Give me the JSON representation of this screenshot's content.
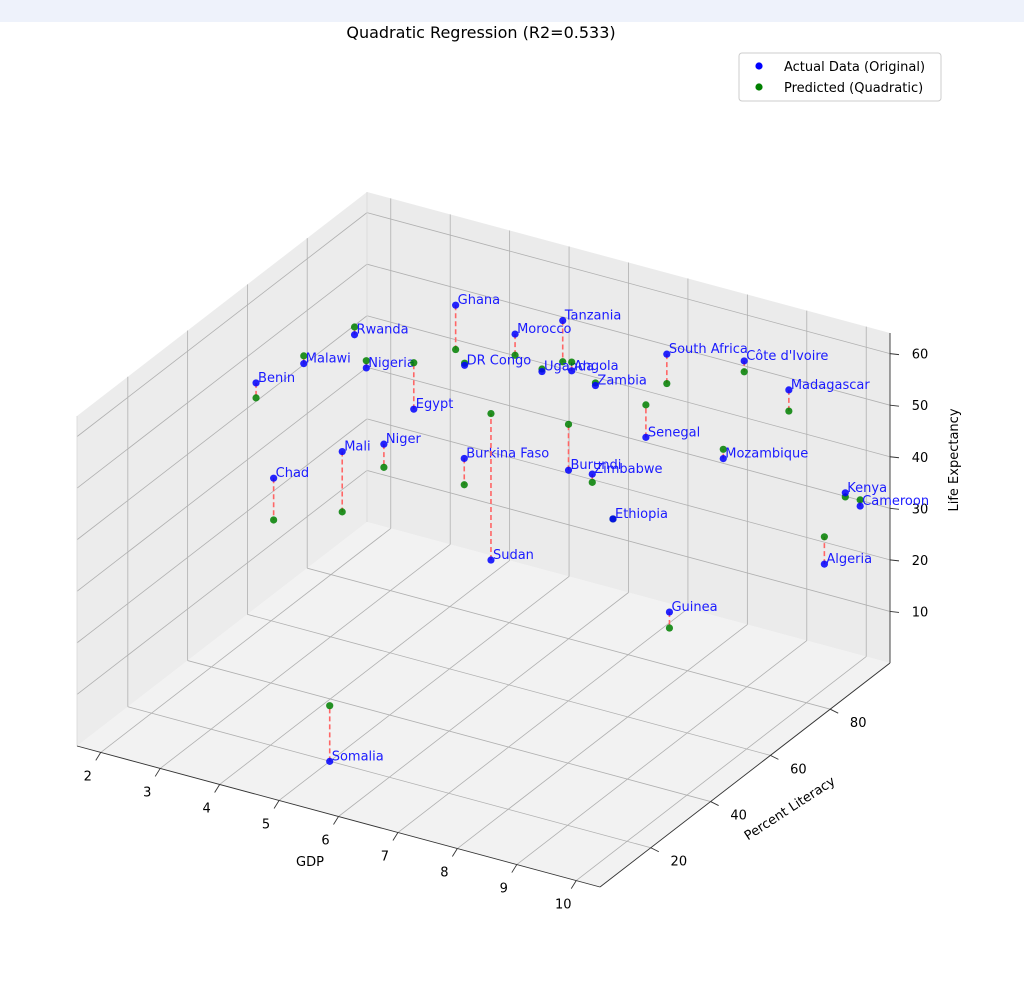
{
  "chart_data": {
    "type": "scatter",
    "projection": "3d",
    "title": "Quadratic Regression (R2=0.533)",
    "xlabel": "GDP",
    "ylabel": "Percent Literacy",
    "zlabel": "Life Expectancy",
    "xlim": [
      1.6,
      10.4
    ],
    "ylim": [
      3,
      100
    ],
    "zlim": [
      0,
      64
    ],
    "x_ticks": [
      "2",
      "3",
      "4",
      "5",
      "6",
      "7",
      "8",
      "9",
      "10"
    ],
    "y_ticks": [
      "20",
      "40",
      "60",
      "80"
    ],
    "z_ticks": [
      "10",
      "20",
      "30",
      "40",
      "50",
      "60"
    ],
    "grid": true,
    "legend_position": "top-right",
    "series": [
      {
        "name": "Actual Data (Original)",
        "color": "#0000ff"
      },
      {
        "name": "Predicted (Quadratic)",
        "color": "#008000"
      }
    ],
    "residual_color": "#ff6666",
    "points": [
      {
        "label": "Ghana",
        "gdp": 4.5,
        "literacy": 72,
        "actual": 63.6,
        "predicted": 55.0
      },
      {
        "label": "Tanzania",
        "gdp": 6.0,
        "literacy": 78,
        "actual": 62.6,
        "predicted": 54.6
      },
      {
        "label": "Morocco",
        "gdp": 5.5,
        "literacy": 72,
        "actual": 61.1,
        "predicted": 57.0
      },
      {
        "label": "South Africa",
        "gdp": 7.5,
        "literacy": 83,
        "actual": 58.5,
        "predicted": 52.8
      },
      {
        "label": "Côte d'Ivoire",
        "gdp": 8.5,
        "literacy": 89,
        "actual": 57.6,
        "predicted": 55.5
      },
      {
        "label": "Rwanda",
        "gdp": 3.0,
        "literacy": 68,
        "actual": 55.0,
        "predicted": 56.5
      },
      {
        "label": "Benin",
        "gdp": 2.5,
        "literacy": 45,
        "actual": 54.4,
        "predicted": 51.5
      },
      {
        "label": "Malawi",
        "gdp": 2.8,
        "literacy": 55,
        "actual": 54.6,
        "predicted": 56.1
      },
      {
        "label": "Nigeria",
        "gdp": 3.5,
        "literacy": 62,
        "actual": 52.8,
        "predicted": 54.2
      },
      {
        "label": "Uganda",
        "gdp": 5.5,
        "literacy": 81,
        "actual": 49.8,
        "predicted": 50.3
      },
      {
        "label": "DR Congo",
        "gdp": 4.5,
        "literacy": 75,
        "actual": 50.6,
        "predicted": 51.0
      },
      {
        "label": "Angola",
        "gdp": 6.0,
        "literacy": 81,
        "actual": 51.5,
        "predicted": 53.2
      },
      {
        "label": "Egypt",
        "gdp": 4.5,
        "literacy": 58,
        "actual": 49.7,
        "predicted": 58.7
      },
      {
        "label": "Zambia",
        "gdp": 6.5,
        "literacy": 79,
        "actual": 51.1,
        "predicted": 51.6
      },
      {
        "label": "Madagascar",
        "gdp": 9.0,
        "literacy": 94,
        "actual": 51.3,
        "predicted": 47.2
      },
      {
        "label": "Senegal",
        "gdp": 7.5,
        "literacy": 76,
        "actual": 45.5,
        "predicted": 51.8
      },
      {
        "label": "Burkina Faso",
        "gdp": 5.5,
        "literacy": 55,
        "actual": 44.6,
        "predicted": 39.5
      },
      {
        "label": "Mozambique",
        "gdp": 8.5,
        "literacy": 82,
        "actual": 41.8,
        "predicted": 43.6
      },
      {
        "label": "Zimbabwe",
        "gdp": 7.0,
        "literacy": 68,
        "actual": 40.4,
        "predicted": 38.8
      },
      {
        "label": "Burundi",
        "gdp": 6.5,
        "literacy": 70,
        "actual": 38.7,
        "predicted": 47.6
      },
      {
        "label": "Ethiopia",
        "gdp": 7.5,
        "literacy": 65,
        "actual": 34.6,
        "predicted": 34.6
      },
      {
        "label": "Kenya",
        "gdp": 10.0,
        "literacy": 93,
        "actual": 34.9,
        "predicted": 34.1
      },
      {
        "label": "Cameroon",
        "gdp": 10.2,
        "literacy": 94,
        "actual": 32.5,
        "predicted": 33.7
      },
      {
        "label": "Algeria",
        "gdp": 10.0,
        "literacy": 86,
        "actual": 24.2,
        "predicted": 29.5
      },
      {
        "label": "Niger",
        "gdp": 4.5,
        "literacy": 48,
        "actual": 47.4,
        "predicted": 42.9
      },
      {
        "label": "Mali",
        "gdp": 4.0,
        "literacy": 44,
        "actual": 46.2,
        "predicted": 34.5
      },
      {
        "label": "Chad",
        "gdp": 3.5,
        "literacy": 31,
        "actual": 45.3,
        "predicted": 37.2
      },
      {
        "label": "Sudan",
        "gdp": 6.0,
        "literacy": 54,
        "actual": 26.9,
        "predicted": 55.3
      },
      {
        "label": "Guinea",
        "gdp": 8.5,
        "literacy": 64,
        "actual": 20.1,
        "predicted": 17.0
      },
      {
        "label": "Somalia",
        "gdp": 5.5,
        "literacy": 10,
        "actual": 6.0,
        "predicted": 16.8
      }
    ]
  }
}
